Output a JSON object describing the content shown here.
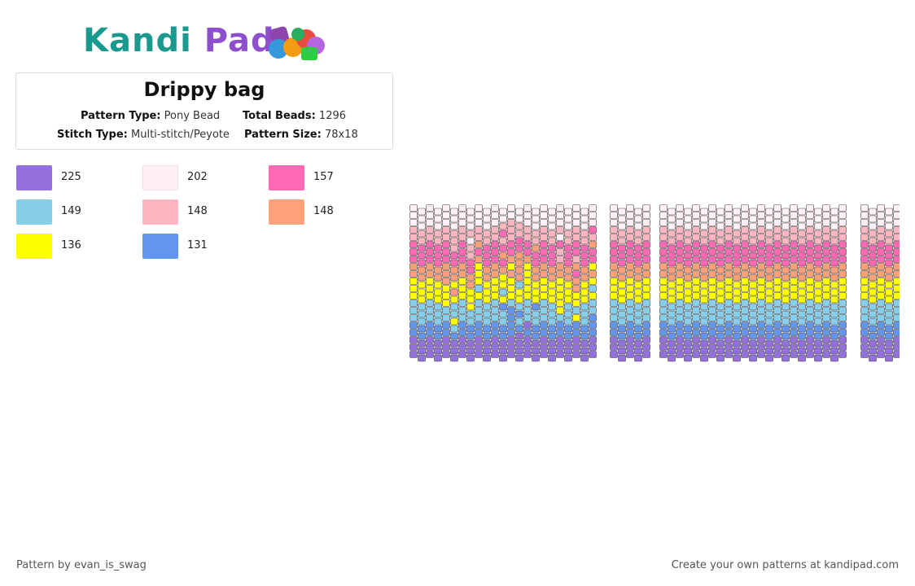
{
  "brand": {
    "logo_text_part1": "Kandi",
    "logo_text_part2": "Pad",
    "colors": {
      "teal": "#1a9a8f",
      "purple": "#8e4fcf"
    }
  },
  "pattern": {
    "title": "Drippy bag",
    "pattern_type_label": "Pattern Type:",
    "pattern_type": "Pony Bead",
    "total_beads_label": "Total Beads:",
    "total_beads": "1296",
    "stitch_type_label": "Stitch Type:",
    "stitch_type": "Multi-stitch/Peyote",
    "pattern_size_label": "Pattern Size:",
    "pattern_size": "78x18"
  },
  "legend": [
    {
      "color": "#9370DB",
      "count": "225"
    },
    {
      "color": "#FFF0F5",
      "count": "202"
    },
    {
      "color": "#FF69B4",
      "count": "157"
    },
    {
      "color": "#87CEEB",
      "count": "149"
    },
    {
      "color": "#FFB6C1",
      "count": "148"
    },
    {
      "color": "#FFA07A",
      "count": "148"
    },
    {
      "color": "#FFFF00",
      "count": "136"
    },
    {
      "color": "#6495ED",
      "count": "131"
    }
  ],
  "stripe_colors_top_to_bottom": [
    "#FFF0F5",
    "#FFB6C1",
    "#FF69B4",
    "#FFA07A",
    "#FFFF00",
    "#87CEEB",
    "#6495ED",
    "#9370DB"
  ],
  "footer": {
    "credit": "Pattern by evan_is_swag",
    "cta": "Create your own patterns at kandipad.com"
  }
}
